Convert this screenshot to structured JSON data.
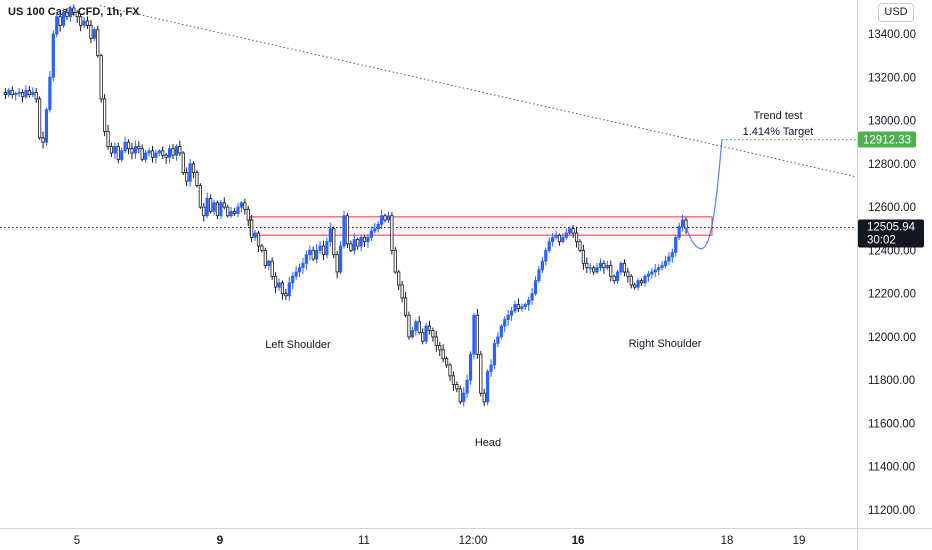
{
  "header": {
    "title": "US 100 Cash CFD, 1h, FX",
    "currency": "USD"
  },
  "chart_data": {
    "type": "candlestick",
    "symbol": "US 100 Cash CFD",
    "interval": "1h",
    "exchange": "FX",
    "ylim": [
      11100,
      13540
    ],
    "y_ticks": [
      13400,
      13200,
      13000,
      12800,
      12600,
      12400,
      12200,
      12000,
      11800,
      11600,
      11400,
      11200
    ],
    "y_tick_labels": [
      "13400.00",
      "13200.00",
      "13000.00",
      "12800.00",
      "12600.00",
      "12400.00",
      "12200.00",
      "12000.00",
      "11800.00",
      "11600.00",
      "11400.00",
      "11200.00"
    ],
    "x_tick_labels": [
      "5",
      "9",
      "11",
      "12:00",
      "16",
      "18",
      "19"
    ],
    "bold_x_ticks": [
      "9",
      "16"
    ],
    "current_price": {
      "value": 12505.94,
      "label": "12505.94",
      "countdown": "30:02"
    },
    "target_price": {
      "value": 12912.33,
      "label": "12912.33"
    },
    "resistance_zone": {
      "low": 12470,
      "high": 12555
    },
    "trendline": {
      "start_value": 13540,
      "end_value": 12740
    },
    "projection_points": [
      12505,
      12460,
      12420,
      12400,
      12460,
      12620,
      12912
    ],
    "annotations": {
      "trend_test": "Trend test",
      "target": "1.414% Target",
      "left_shoulder": "Left Shoulder",
      "head": "Head",
      "right_shoulder": "Right Shoulder"
    },
    "price_path": [
      13130,
      13120,
      13140,
      13120,
      13125,
      13130,
      13110,
      13140,
      13120,
      13130,
      13100,
      12920,
      12900,
      13050,
      13200,
      13400,
      13480,
      13440,
      13500,
      13480,
      13520,
      13500,
      13480,
      13440,
      13460,
      13440,
      13380,
      13420,
      13300,
      13100,
      12950,
      12880,
      12850,
      12880,
      12820,
      12860,
      12900,
      12870,
      12850,
      12880,
      12870,
      12820,
      12850,
      12860,
      12830,
      12850,
      12860,
      12840,
      12830,
      12870,
      12840,
      12880,
      12850,
      12760,
      12720,
      12800,
      12760,
      12700,
      12600,
      12560,
      12640,
      12580,
      12620,
      12560,
      12620,
      12600,
      12560,
      12580,
      12570,
      12600,
      12620,
      12590,
      12540,
      12460,
      12480,
      12420,
      12400,
      12330,
      12350,
      12280,
      12230,
      12250,
      12200,
      12190,
      12250,
      12280,
      12300,
      12320,
      12340,
      12380,
      12400,
      12360,
      12400,
      12420,
      12380,
      12440,
      12500,
      12380,
      12300,
      12420,
      12560,
      12430,
      12400,
      12450,
      12420,
      12460,
      12440,
      12460,
      12490,
      12500,
      12520,
      12560,
      12540,
      12560,
      12400,
      12300,
      12240,
      12180,
      12100,
      12000,
      12030,
      12070,
      12020,
      11980,
      12050,
      12030,
      12000,
      11960,
      11940,
      11900,
      11870,
      11820,
      11780,
      11760,
      11700,
      11740,
      11800,
      11920,
      12100,
      11920,
      11740,
      11700,
      11840,
      11870,
      11970,
      12000,
      12050,
      12080,
      12100,
      12120,
      12150,
      12130,
      12140,
      12150,
      12170,
      12200,
      12260,
      12310,
      12350,
      12400,
      12440,
      12460,
      12470,
      12440,
      12460,
      12480,
      12500,
      12480,
      12440,
      12400,
      12340,
      12320,
      12320,
      12300,
      12320,
      12340,
      12320,
      12330,
      12280,
      12260,
      12300,
      12340,
      12300,
      12280,
      12240,
      12230,
      12260,
      12250,
      12280,
      12290,
      12300,
      12310,
      12320,
      12330,
      12350,
      12370,
      12390,
      12460,
      12510,
      12540,
      12500
    ]
  }
}
